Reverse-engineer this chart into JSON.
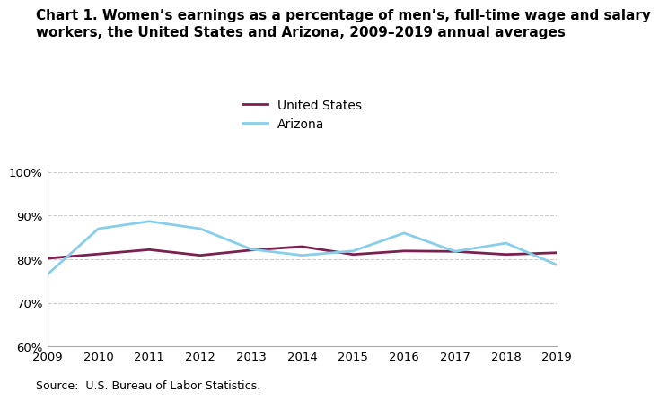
{
  "years": [
    2009,
    2010,
    2011,
    2012,
    2013,
    2014,
    2015,
    2016,
    2017,
    2018,
    2019
  ],
  "us_values": [
    80.2,
    81.2,
    82.2,
    80.9,
    82.1,
    82.9,
    81.1,
    81.9,
    81.8,
    81.1,
    81.5
  ],
  "az_values": [
    76.5,
    87.0,
    88.7,
    87.0,
    82.3,
    80.9,
    81.9,
    86.0,
    81.8,
    83.7,
    78.7
  ],
  "title_line1": "Chart 1. Women’s earnings as a percentage of men’s, full-time wage and salary",
  "title_line2": "workers, the United States and Arizona, 2009–2019 annual averages",
  "us_label": "United States",
  "az_label": "Arizona",
  "us_color": "#7B2150",
  "az_color": "#87CEEB",
  "ylim": [
    60,
    101
  ],
  "yticks": [
    60,
    70,
    80,
    90,
    100
  ],
  "source_text": "Source:  U.S. Bureau of Labor Statistics.",
  "title_fontsize": 11,
  "axis_fontsize": 9.5,
  "legend_fontsize": 10,
  "source_fontsize": 9,
  "line_width": 2.0
}
